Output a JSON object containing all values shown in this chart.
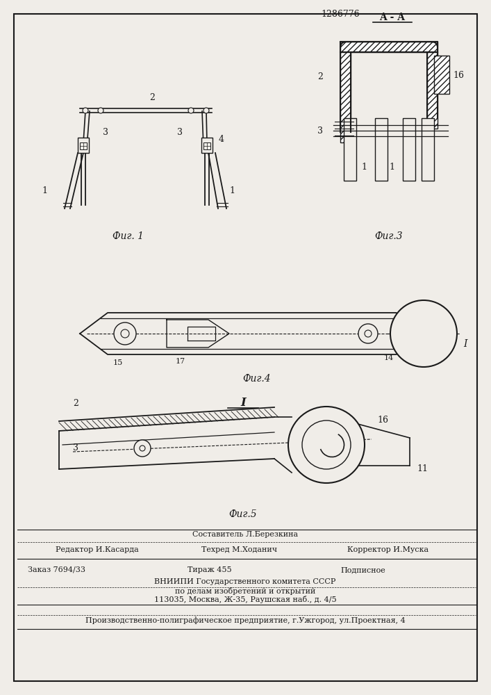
{
  "patent_number": "1286776",
  "background_color": "#f0ede8",
  "line_color": "#1a1a1a",
  "fig_label_1": "Фиг. 1",
  "fig_label_3": "Фиг.3",
  "fig_label_4": "Фиг.4",
  "fig_label_5": "Фиг.5",
  "section_label": "A - A",
  "section_label2": "I",
  "footer_line1": "Составитель Л.Березкина",
  "footer_editor": "Редактор И.Касарда",
  "footer_tech": "Техред М.Ходанич",
  "footer_corrector": "Корректор И.Муска",
  "footer_order": "Заказ 7694/33",
  "footer_tirazh": "Тираж 455",
  "footer_podp": "Подписное",
  "footer_vniip1": "ВНИИПИ Государственного комитета СССР",
  "footer_vniip2": "по делам изобретений и открытий",
  "footer_vniip3": "113035, Москва, Ж-35, Раушская наб., д. 4/5",
  "footer_prod": "Производственно-полиграфическое предприятие, г.Ужгород, ул.Проектная, 4"
}
